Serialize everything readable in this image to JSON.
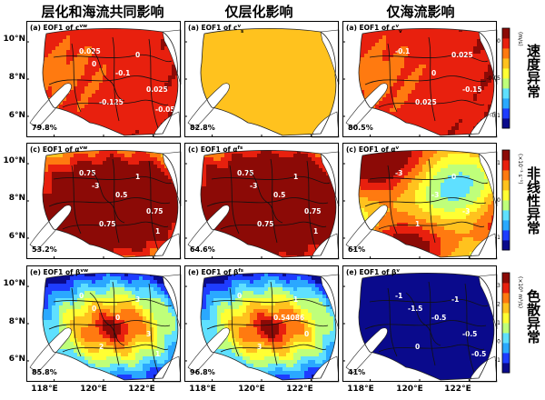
{
  "column_titles": [
    "层化和海流共同影响",
    "仅层化影响",
    "仅海流影响"
  ],
  "row_labels": [
    "速度异常",
    "非线性异常",
    "色散异常"
  ],
  "axes": {
    "lat_ticks": [
      "10°N",
      "8°N",
      "6°N"
    ],
    "lon_ticks": [
      "118°E",
      "120°E",
      "122°E"
    ]
  },
  "colors": {
    "colormap": [
      "#0a0a8c",
      "#1e3cff",
      "#2aa8ff",
      "#5fe0ff",
      "#bfff7a",
      "#ffff33",
      "#ffc21e",
      "#ff7a10",
      "#e8200e",
      "#8c0a06"
    ],
    "land": "#ffffff",
    "contour": "#111111"
  },
  "chart_data": {
    "type": "heatmap",
    "rows": [
      {
        "label": "速度异常",
        "colorbar": {
          "unit": "(m/s)",
          "ticks": [
            "0",
            "-0.05",
            "-0.1"
          ],
          "range": [
            -0.125,
            0.025
          ]
        },
        "panels": [
          {
            "label": "(a) EOF1 of c",
            "sup": "vw",
            "variance": "79.8%",
            "base": 0.0,
            "variation": 0.12,
            "pattern": "west_neg",
            "contours": [
              "0.025",
              "-0.1",
              "-0.125",
              "0",
              "0.025",
              "-0.05",
              "0"
            ]
          },
          {
            "label": "(a) EOF1 of c",
            "sup": "v",
            "sub": "s",
            "variance": "82.8%",
            "base": 0.1,
            "variation": 0.04,
            "pattern": "flat",
            "contours": []
          },
          {
            "label": "(a) EOF1 of c",
            "sup": "v",
            "sub": "v",
            "variance": "80.5%",
            "base": 0.0,
            "variation": 0.13,
            "pattern": "west_neg",
            "contours": [
              "-0.1",
              "0",
              "0.025",
              "0.025",
              "-0.15"
            ]
          }
        ]
      },
      {
        "label": "非线性异常",
        "colorbar": {
          "unit": "(×10⁻³ s⁻¹)",
          "ticks": [
            "1",
            "0",
            "-1"
          ],
          "range": [
            -1.5,
            1.5
          ]
        },
        "panels": [
          {
            "label": "(c) EOF1 of α",
            "sup": "vw",
            "variance": "53.2%",
            "base": 0.55,
            "variation": 0.45,
            "pattern": "central_pos",
            "contours": [
              "0.75",
              "0.5",
              "0.75",
              "1",
              "0.75",
              "1",
              "-3"
            ]
          },
          {
            "label": "(c) EOF1 of α",
            "sup": "fs",
            "variance": "64.6%",
            "base": 0.6,
            "variation": 0.4,
            "pattern": "central_pos",
            "contours": [
              "0.75",
              "0.5",
              "0.75",
              "1",
              "0.75",
              "1",
              "-3"
            ]
          },
          {
            "label": "(c) EOF1 of α",
            "sup": "v",
            "variance": "61%",
            "base": 0.2,
            "variation": 0.35,
            "pattern": "mixed",
            "contours": [
              "-3",
              "-3",
              "1",
              "0",
              "-3"
            ]
          }
        ]
      },
      {
        "label": "色散异常",
        "colorbar": {
          "unit": "(×10⁵ m³/s)",
          "ticks": [
            "3",
            "2",
            "1",
            "0",
            "-1"
          ],
          "range": [
            -1.5,
            3.5
          ]
        },
        "panels": [
          {
            "label": "(e) EOF1 of β",
            "sup": "vw",
            "variance": "85.8%",
            "base": 0.15,
            "variation": 0.55,
            "pattern": "central_pos",
            "contours": [
              "0",
              "0",
              "2",
              "3",
              "3",
              "1",
              "0"
            ]
          },
          {
            "label": "(e) EOF1 of β",
            "sup": "fs",
            "variance": "96.8%",
            "base": 0.15,
            "variation": 0.55,
            "pattern": "central_pos",
            "contours": [
              "0",
              "0.54086",
              "3",
              "1",
              "0"
            ]
          },
          {
            "label": "(e) EOF1 of β",
            "sup": "v",
            "variance": "41%",
            "base": -0.45,
            "variation": 0.25,
            "pattern": "west_neg",
            "contours": [
              "-1",
              "-0.5",
              "0",
              "-1",
              "-0.5",
              "-0.5",
              "-1.5"
            ]
          }
        ]
      }
    ]
  }
}
